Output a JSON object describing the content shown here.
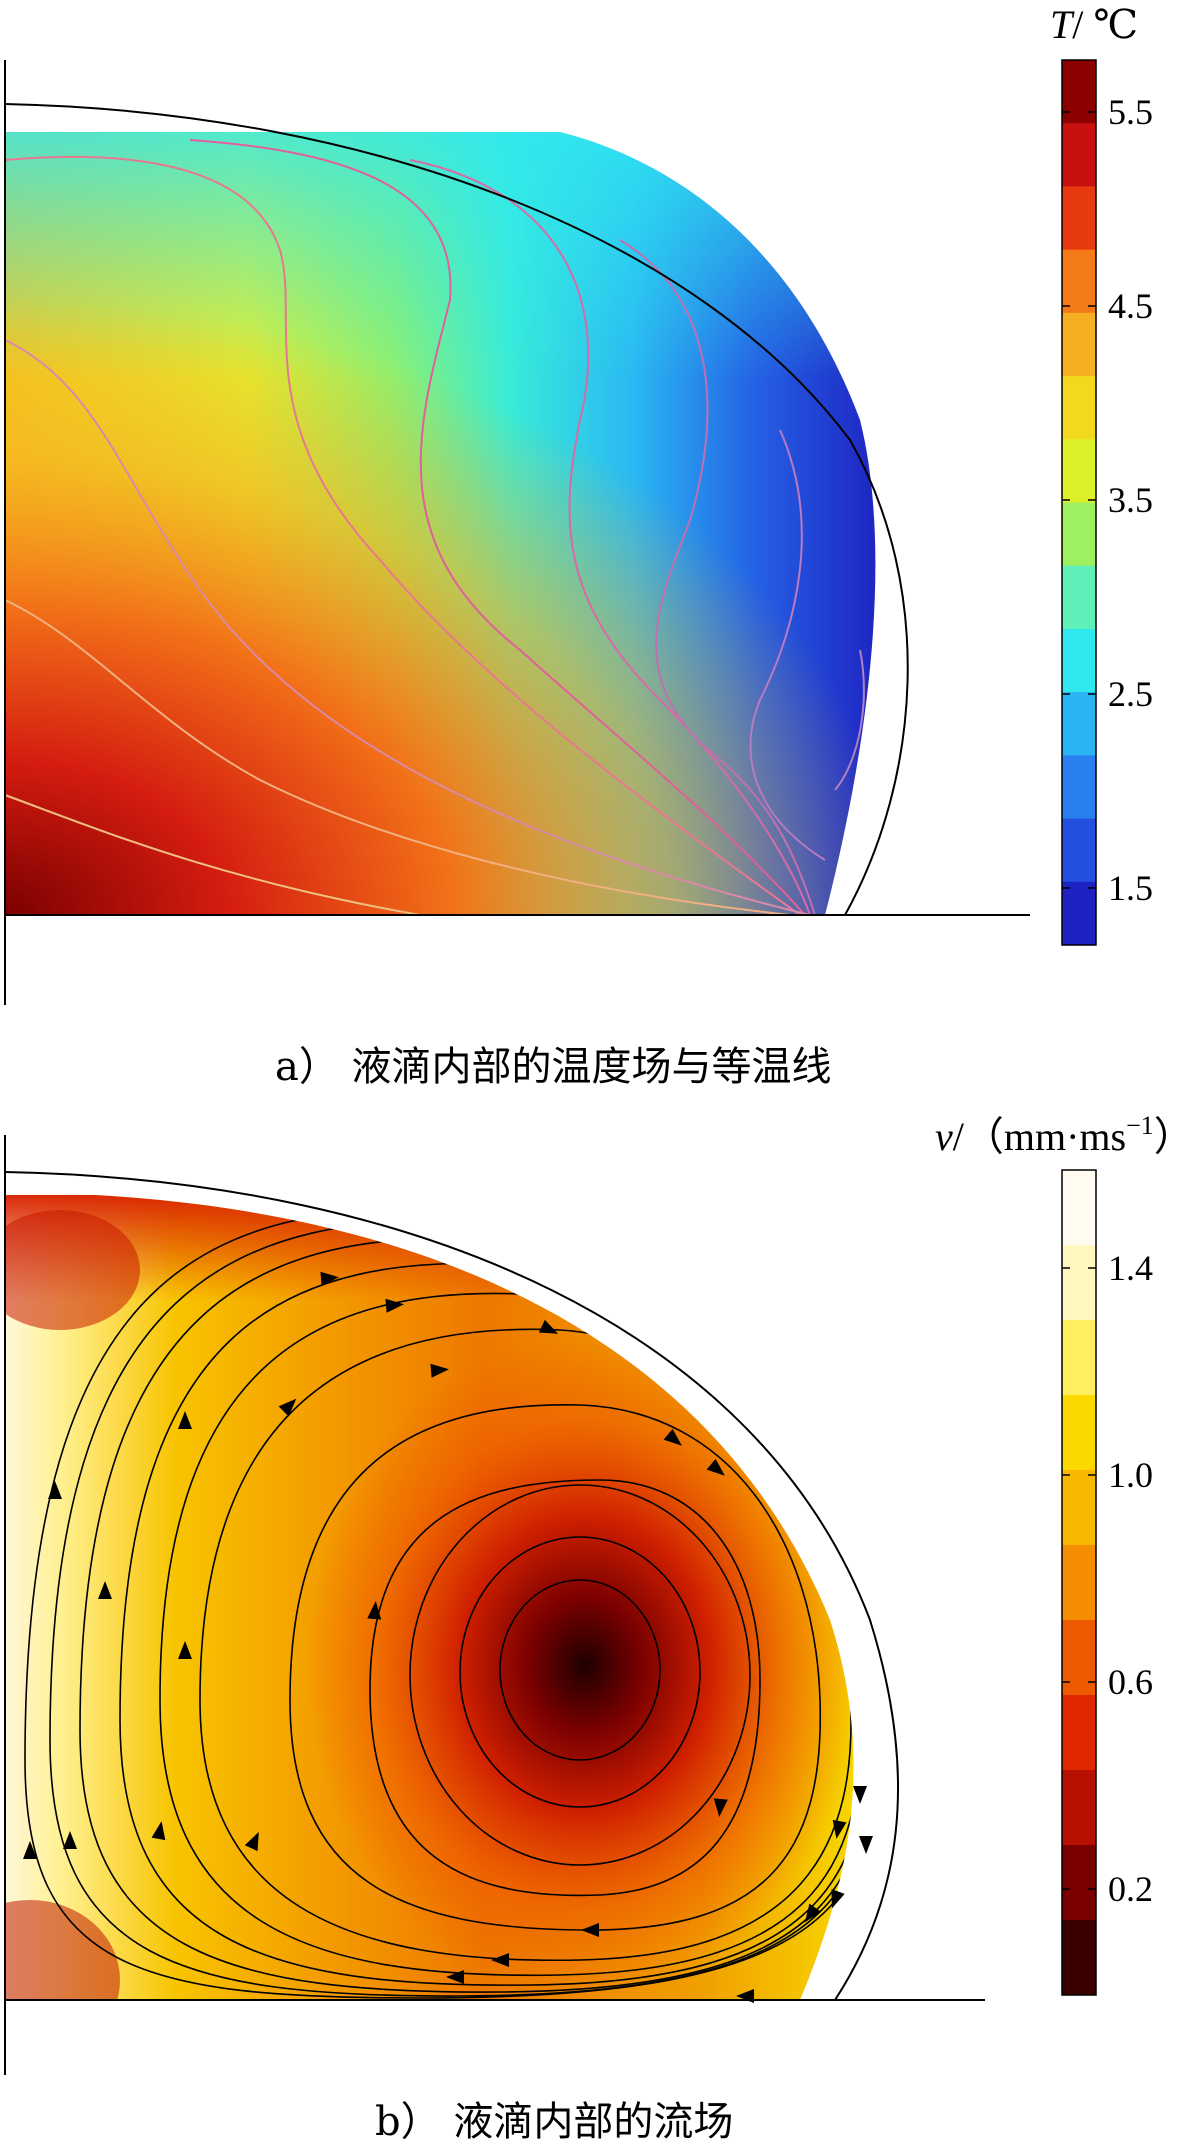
{
  "panel_a": {
    "caption": "a） 液滴内部的温度场与等温线",
    "colorbar": {
      "var": "T",
      "unit": "/ ℃",
      "ticks": [
        "5.5",
        "4.5",
        "3.5",
        "2.5",
        "1.5"
      ],
      "colors": [
        "#8c0000",
        "#c81010",
        "#e83a10",
        "#f47a18",
        "#f6ae22",
        "#f2d81e",
        "#dcf02a",
        "#9ef060",
        "#5ef0b8",
        "#2ee8ee",
        "#2ab4f4",
        "#2880f0",
        "#2450e0",
        "#1e22c0"
      ]
    }
  },
  "panel_b": {
    "caption": "b） 液滴内部的流场",
    "colorbar": {
      "var": "v",
      "unit": "/（mm·ms",
      "unit_sup": "−1",
      "unit_close": "）",
      "ticks": [
        "1.4",
        "1.0",
        "0.6",
        "0.2"
      ],
      "colors": [
        "#fffbf0",
        "#fff6c0",
        "#ffee60",
        "#fbd800",
        "#f8b800",
        "#f48e00",
        "#ee5a00",
        "#e02800",
        "#b81000",
        "#7a0000",
        "#3a0000"
      ]
    }
  }
}
